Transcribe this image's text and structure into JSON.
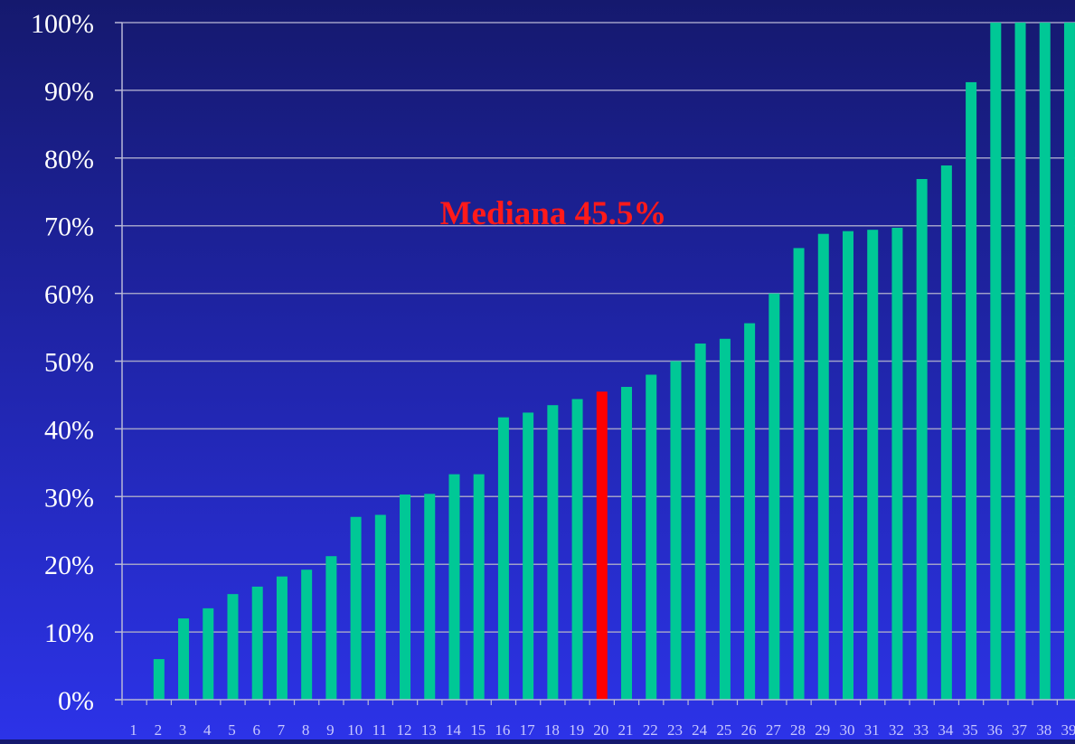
{
  "chart_data": {
    "type": "bar",
    "title": "",
    "xlabel": "",
    "ylabel": "",
    "annotation": "Mediana 45.5%",
    "categories": [
      "1",
      "2",
      "3",
      "4",
      "5",
      "6",
      "7",
      "8",
      "9",
      "10",
      "11",
      "12",
      "13",
      "14",
      "15",
      "16",
      "17",
      "18",
      "19",
      "20",
      "21",
      "22",
      "23",
      "24",
      "25",
      "26",
      "27",
      "28",
      "29",
      "30",
      "31",
      "32",
      "33",
      "34",
      "35",
      "36",
      "37",
      "38",
      "39"
    ],
    "values": [
      0,
      6,
      12,
      13.5,
      15.6,
      16.7,
      18.2,
      19.2,
      21.2,
      27,
      27.3,
      30.3,
      30.4,
      33.3,
      33.3,
      41.7,
      42.4,
      43.5,
      44.4,
      45.5,
      46.2,
      48,
      50,
      52.6,
      53.3,
      55.6,
      60,
      66.7,
      68.8,
      69.2,
      69.4,
      69.7,
      76.9,
      78.9,
      91.2,
      100,
      100,
      100,
      100
    ],
    "highlight_index": 19,
    "ylim": [
      0,
      100
    ],
    "yticks": [
      0,
      10,
      20,
      30,
      40,
      50,
      60,
      70,
      80,
      90,
      100
    ],
    "ytick_labels": [
      "0%",
      "10%",
      "20%",
      "30%",
      "40%",
      "50%",
      "60%",
      "70%",
      "80%",
      "90%",
      "100%"
    ],
    "grid": true,
    "legend": "none"
  },
  "colors": {
    "bar": "#00c896",
    "highlight": "#ff0000",
    "annotation": "#ff1a1a",
    "grid": "#a0a0c8",
    "axis": "#b8b8d8",
    "tick_label": "#ffffff",
    "category_label": "#c8c8ff"
  }
}
